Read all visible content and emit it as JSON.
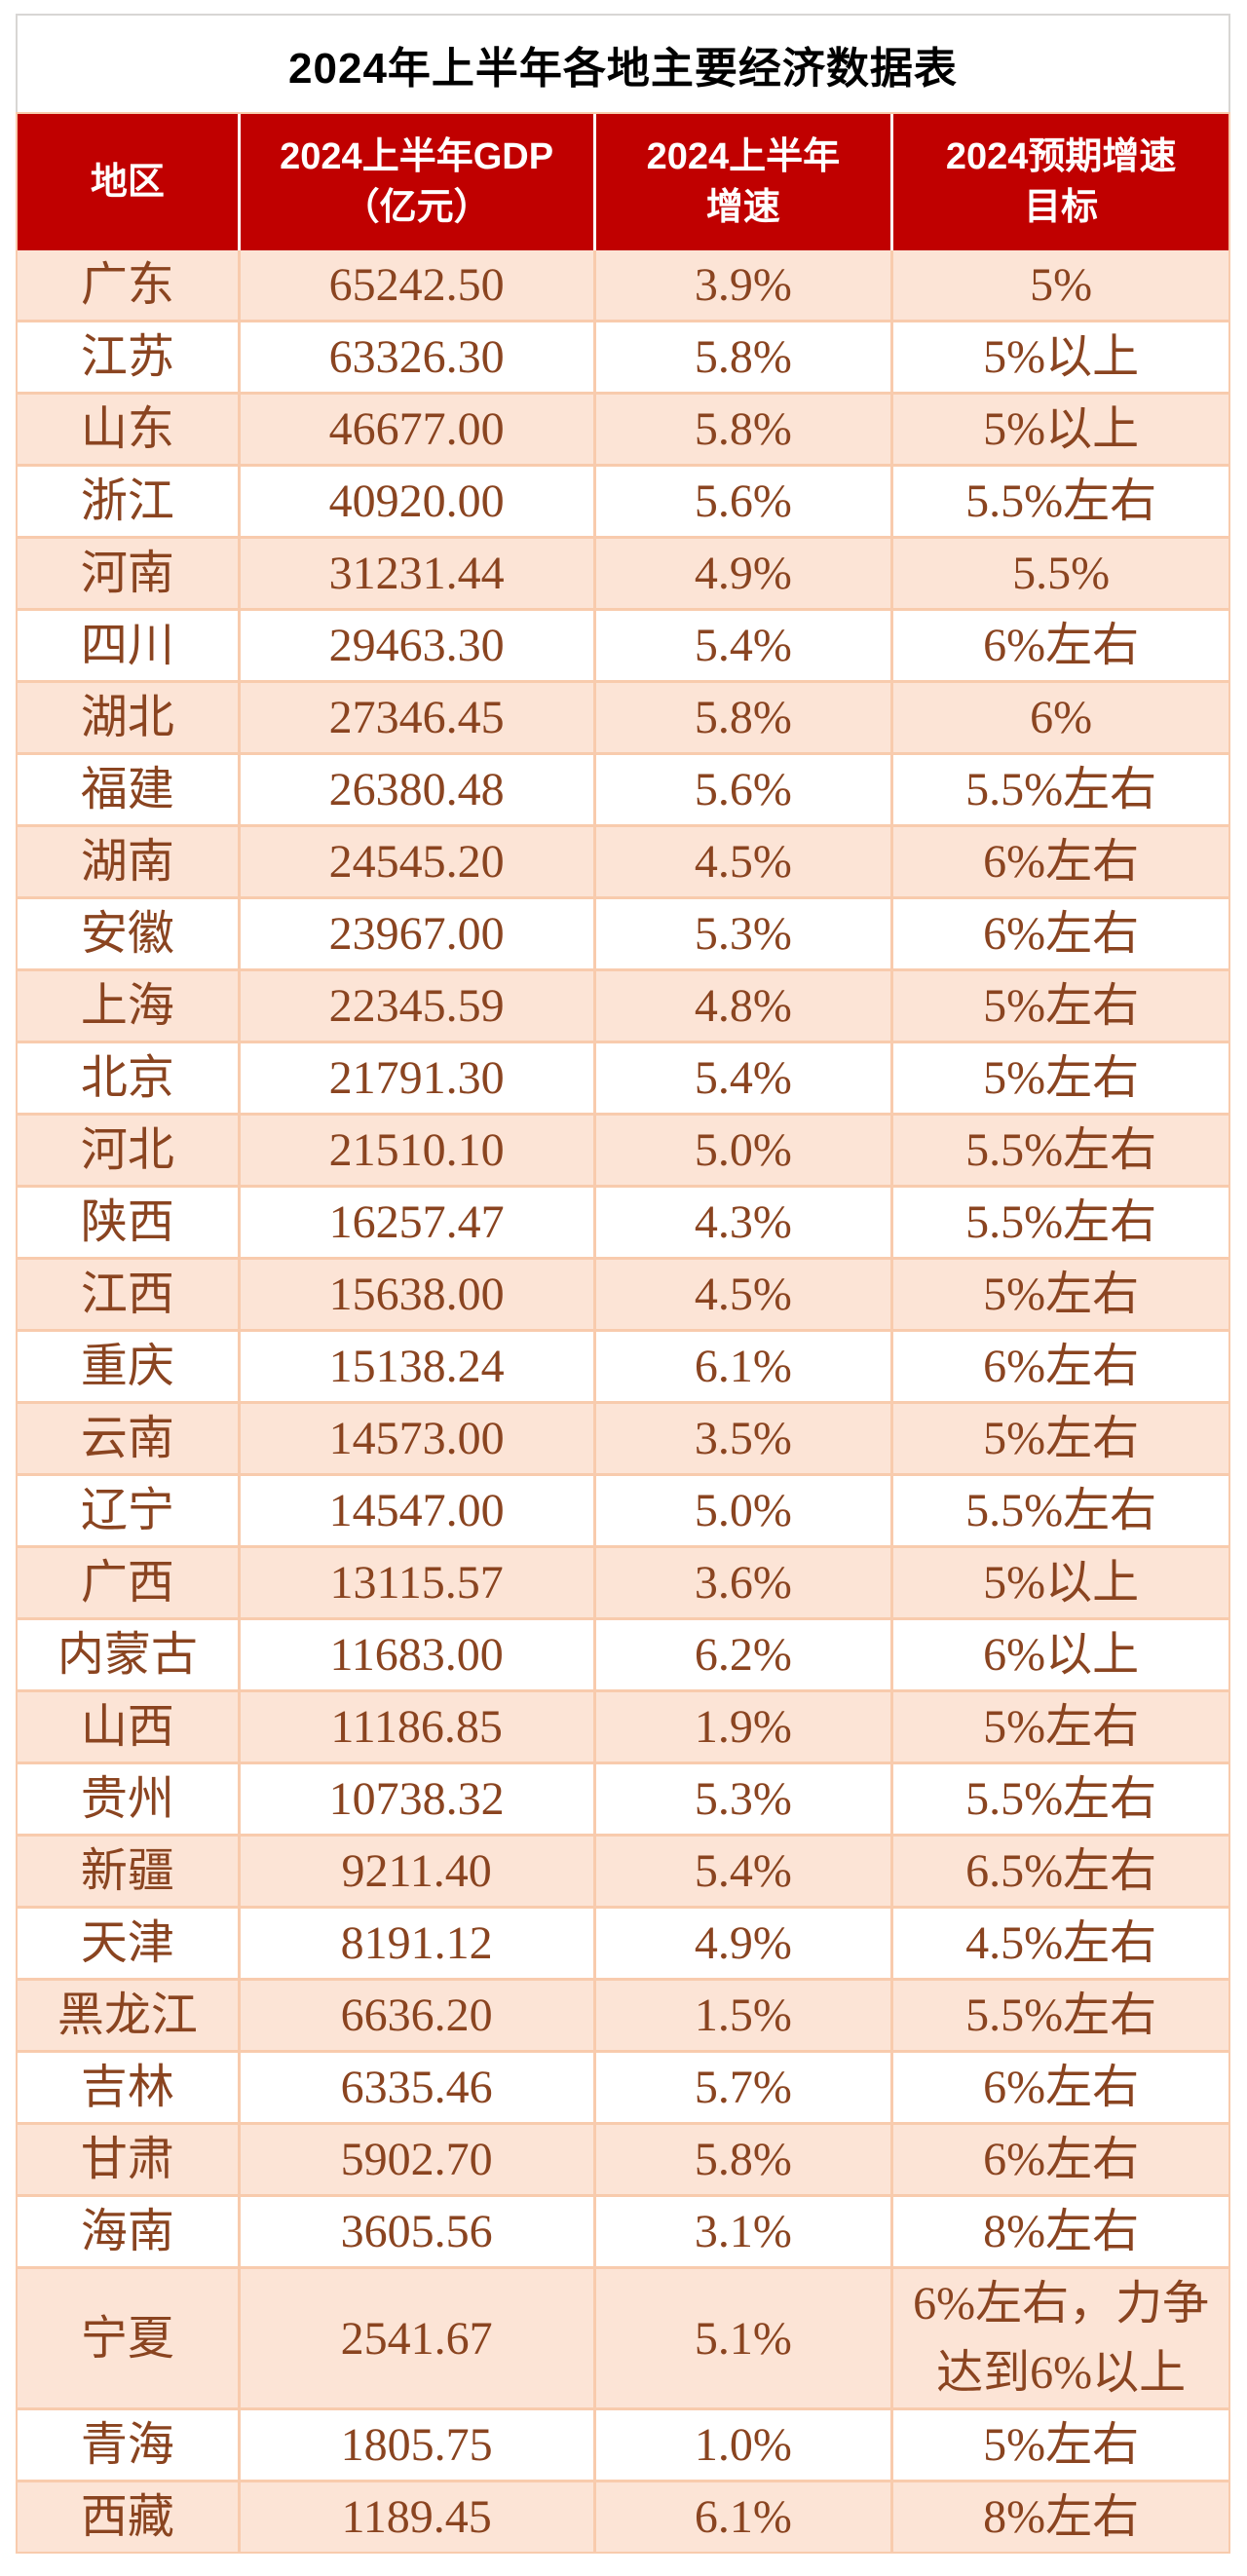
{
  "title": "2024年上半年各地主要经济数据表",
  "columns": [
    {
      "key": "region",
      "label": "地区"
    },
    {
      "key": "gdp",
      "label": "2024上半年GDP\n（亿元）"
    },
    {
      "key": "growth",
      "label": "2024上半年\n增速"
    },
    {
      "key": "target",
      "label": "2024预期增速\n目标"
    }
  ],
  "rows": [
    {
      "region": "广东",
      "gdp": "65242.50",
      "growth": "3.9%",
      "target": "5%"
    },
    {
      "region": "江苏",
      "gdp": "63326.30",
      "growth": "5.8%",
      "target": "5%以上"
    },
    {
      "region": "山东",
      "gdp": "46677.00",
      "growth": "5.8%",
      "target": "5%以上"
    },
    {
      "region": "浙江",
      "gdp": "40920.00",
      "growth": "5.6%",
      "target": "5.5%左右"
    },
    {
      "region": "河南",
      "gdp": "31231.44",
      "growth": "4.9%",
      "target": "5.5%"
    },
    {
      "region": "四川",
      "gdp": "29463.30",
      "growth": "5.4%",
      "target": "6%左右"
    },
    {
      "region": "湖北",
      "gdp": "27346.45",
      "growth": "5.8%",
      "target": "6%"
    },
    {
      "region": "福建",
      "gdp": "26380.48",
      "growth": "5.6%",
      "target": "5.5%左右"
    },
    {
      "region": "湖南",
      "gdp": "24545.20",
      "growth": "4.5%",
      "target": "6%左右"
    },
    {
      "region": "安徽",
      "gdp": "23967.00",
      "growth": "5.3%",
      "target": "6%左右"
    },
    {
      "region": "上海",
      "gdp": "22345.59",
      "growth": "4.8%",
      "target": "5%左右"
    },
    {
      "region": "北京",
      "gdp": "21791.30",
      "growth": "5.4%",
      "target": "5%左右"
    },
    {
      "region": "河北",
      "gdp": "21510.10",
      "growth": "5.0%",
      "target": "5.5%左右"
    },
    {
      "region": "陕西",
      "gdp": "16257.47",
      "growth": "4.3%",
      "target": "5.5%左右"
    },
    {
      "region": "江西",
      "gdp": "15638.00",
      "growth": "4.5%",
      "target": "5%左右"
    },
    {
      "region": "重庆",
      "gdp": "15138.24",
      "growth": "6.1%",
      "target": "6%左右"
    },
    {
      "region": "云南",
      "gdp": "14573.00",
      "growth": "3.5%",
      "target": "5%左右"
    },
    {
      "region": "辽宁",
      "gdp": "14547.00",
      "growth": "5.0%",
      "target": "5.5%左右"
    },
    {
      "region": "广西",
      "gdp": "13115.57",
      "growth": "3.6%",
      "target": "5%以上"
    },
    {
      "region": "内蒙古",
      "gdp": "11683.00",
      "growth": "6.2%",
      "target": "6%以上"
    },
    {
      "region": "山西",
      "gdp": "11186.85",
      "growth": "1.9%",
      "target": "5%左右"
    },
    {
      "region": "贵州",
      "gdp": "10738.32",
      "growth": "5.3%",
      "target": "5.5%左右"
    },
    {
      "region": "新疆",
      "gdp": "9211.40",
      "growth": "5.4%",
      "target": "6.5%左右"
    },
    {
      "region": "天津",
      "gdp": "8191.12",
      "growth": "4.9%",
      "target": "4.5%左右"
    },
    {
      "region": "黑龙江",
      "gdp": "6636.20",
      "growth": "1.5%",
      "target": "5.5%左右"
    },
    {
      "region": "吉林",
      "gdp": "6335.46",
      "growth": "5.7%",
      "target": "6%左右"
    },
    {
      "region": "甘肃",
      "gdp": "5902.70",
      "growth": "5.8%",
      "target": "6%左右"
    },
    {
      "region": "海南",
      "gdp": "3605.56",
      "growth": "3.1%",
      "target": "8%左右"
    },
    {
      "region": "宁夏",
      "gdp": "2541.67",
      "growth": "5.1%",
      "target": "6%左右，力争\n达到6%以上"
    },
    {
      "region": "青海",
      "gdp": "1805.75",
      "growth": "1.0%",
      "target": "5%左右"
    },
    {
      "region": "西藏",
      "gdp": "1189.45",
      "growth": "6.1%",
      "target": "8%左右"
    }
  ],
  "colors": {
    "header_bg": "#c00000",
    "header_text": "#ffffff",
    "stripe_bg": "#fce4d6",
    "grid_border": "#f8cbad",
    "data_text": "#8a4420",
    "title_text": "#000000"
  }
}
